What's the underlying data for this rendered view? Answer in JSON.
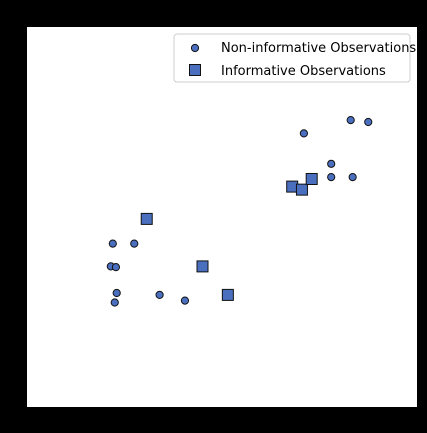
{
  "chart_data": {
    "type": "scatter",
    "title": "",
    "xlabel": "",
    "ylabel": "",
    "xlim": [
      0,
      10
    ],
    "ylim": [
      0,
      10
    ],
    "grid": false,
    "legend_position": "top-right",
    "series": [
      {
        "name": "Non-informative Observations",
        "marker": "circle",
        "color": "#4a6fbf",
        "points": [
          {
            "x": 2.2,
            "y": 4.3
          },
          {
            "x": 2.3,
            "y": 3.0
          },
          {
            "x": 2.25,
            "y": 2.75
          },
          {
            "x": 2.15,
            "y": 3.7
          },
          {
            "x": 2.28,
            "y": 3.68
          },
          {
            "x": 2.75,
            "y": 4.3
          },
          {
            "x": 3.4,
            "y": 2.95
          },
          {
            "x": 4.05,
            "y": 2.8
          },
          {
            "x": 7.1,
            "y": 7.2
          },
          {
            "x": 7.8,
            "y": 6.4
          },
          {
            "x": 7.8,
            "y": 6.05
          },
          {
            "x": 8.3,
            "y": 7.55
          },
          {
            "x": 8.35,
            "y": 6.05
          },
          {
            "x": 8.75,
            "y": 7.5
          }
        ]
      },
      {
        "name": "Informative Observations",
        "marker": "square",
        "color": "#4a6fbf",
        "points": [
          {
            "x": 3.07,
            "y": 4.95
          },
          {
            "x": 4.5,
            "y": 3.7
          },
          {
            "x": 5.15,
            "y": 2.95
          },
          {
            "x": 6.8,
            "y": 5.8
          },
          {
            "x": 7.05,
            "y": 5.72
          },
          {
            "x": 7.3,
            "y": 6.0
          }
        ]
      }
    ]
  }
}
